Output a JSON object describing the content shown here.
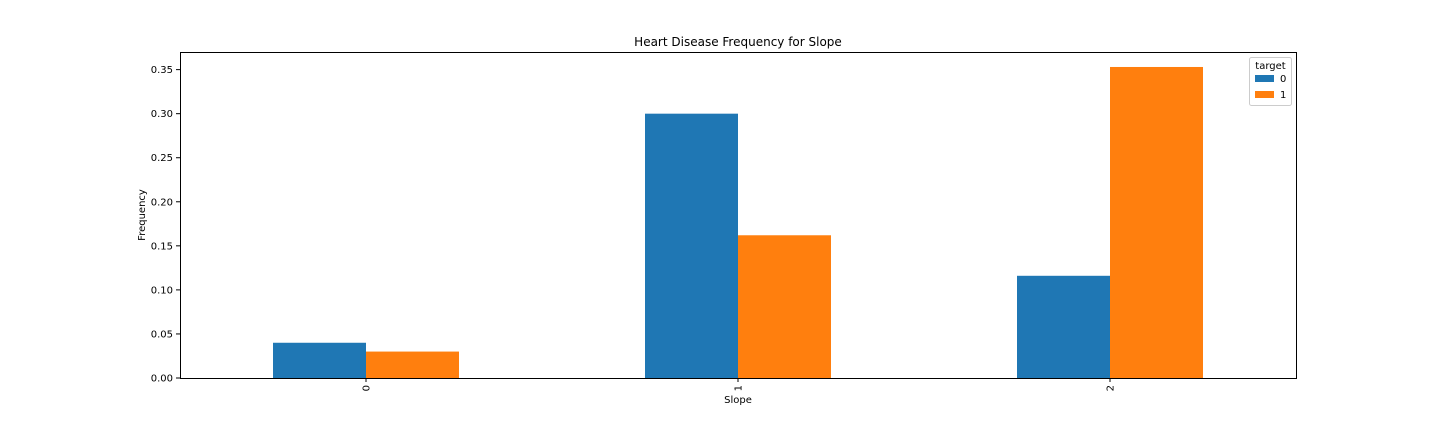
{
  "chart_data": {
    "type": "bar",
    "title": "Heart Disease Frequency for Slope",
    "xlabel": "Slope",
    "ylabel": "Frequency",
    "categories": [
      "0",
      "1",
      "2"
    ],
    "series": [
      {
        "name": "0",
        "values": [
          0.04,
          0.3,
          0.116
        ]
      },
      {
        "name": "1",
        "values": [
          0.03,
          0.162,
          0.353
        ]
      }
    ],
    "ylim": [
      0,
      0.37
    ],
    "yticks": [
      0.0,
      0.05,
      0.1,
      0.15,
      0.2,
      0.25,
      0.3,
      0.35
    ],
    "ytick_labels": [
      "0.00",
      "0.05",
      "0.10",
      "0.15",
      "0.20",
      "0.25",
      "0.30",
      "0.35"
    ],
    "xtick_rotation": "vertical",
    "grid": false,
    "legend": {
      "title": "target",
      "placement": "top-right"
    },
    "colors": [
      "#1f77b4",
      "#ff7f0e"
    ]
  }
}
